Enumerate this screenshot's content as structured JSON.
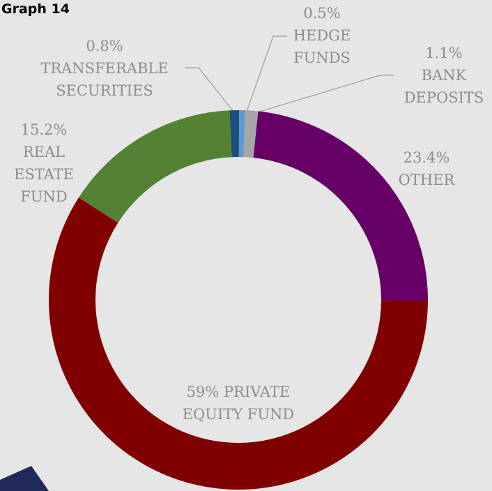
{
  "chart_data": {
    "type": "donut",
    "title": "Graph 14",
    "categories": [
      "OTHER",
      "PRIVATE EQUITY FUND",
      "REAL ESTATE FUND",
      "TRANSFERABLE SECURITIES",
      "HEDGE FUNDS",
      "BANK DEPOSITS"
    ],
    "values": [
      23.4,
      59,
      15.2,
      0.8,
      0.5,
      1.1
    ],
    "value_labels": [
      "23.4%",
      "59%",
      "15.2%",
      "0.8%",
      "0.5%",
      "1.1%"
    ],
    "colors": [
      "#660066",
      "#800000",
      "#548235",
      "#1f4e79",
      "#5b9bd5",
      "#a6a6a6"
    ]
  }
}
